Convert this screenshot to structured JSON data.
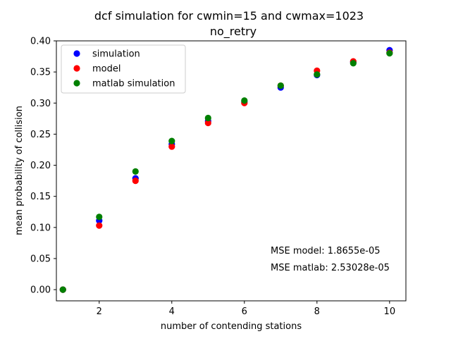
{
  "chart_data": {
    "type": "scatter",
    "title_line1": "dcf simulation for cwmin=15 and cwmax=1023",
    "title_line2": "no_retry",
    "xlabel": "number of contending stations",
    "ylabel": "mean probability of collision",
    "xlim": [
      0.82,
      10.45
    ],
    "ylim": [
      -0.018,
      0.4
    ],
    "xticks": [
      2,
      4,
      6,
      8,
      10
    ],
    "xtick_labels": [
      "2",
      "4",
      "6",
      "8",
      "10"
    ],
    "yticks": [
      0.0,
      0.05,
      0.1,
      0.15,
      0.2,
      0.25,
      0.3,
      0.35,
      0.4
    ],
    "ytick_labels": [
      "0.00",
      "0.05",
      "0.10",
      "0.15",
      "0.20",
      "0.25",
      "0.30",
      "0.35",
      "0.40"
    ],
    "x": [
      1,
      2,
      3,
      4,
      5,
      6,
      7,
      8,
      9,
      10
    ],
    "series": [
      {
        "name": "simulation",
        "color": "#0000ff",
        "values": [
          0.0,
          0.111,
          0.179,
          0.234,
          0.271,
          0.302,
          0.325,
          0.345,
          0.366,
          0.385
        ]
      },
      {
        "name": "model",
        "color": "#ff0000",
        "values": [
          0.0,
          0.103,
          0.175,
          0.23,
          0.268,
          0.3,
          0.328,
          0.352,
          0.367,
          0.381
        ]
      },
      {
        "name": "matlab simulation",
        "color": "#008000",
        "values": [
          0.0,
          0.117,
          0.19,
          0.239,
          0.276,
          0.304,
          0.328,
          0.346,
          0.364,
          0.38
        ]
      }
    ],
    "legend_position": "upper-left",
    "annotations": [
      "MSE model: 1.8655e-05",
      "MSE matlab: 2.53028e-05"
    ]
  }
}
